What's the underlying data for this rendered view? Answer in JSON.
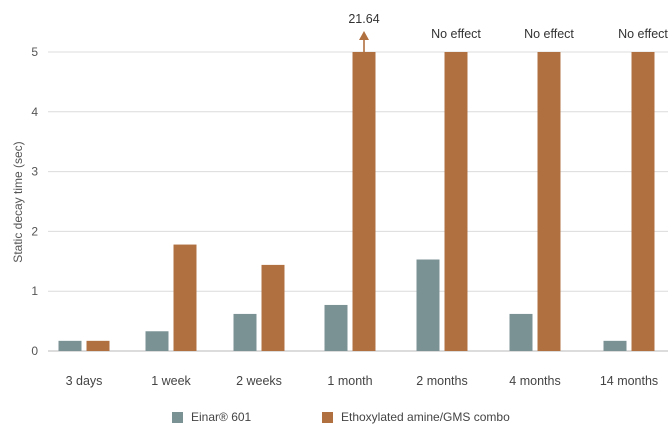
{
  "chart_data": {
    "type": "bar",
    "title": "",
    "xlabel": "",
    "ylabel": "Static decay time (sec)",
    "ylim": [
      0,
      5
    ],
    "yticks": [
      0,
      1,
      2,
      3,
      4,
      5
    ],
    "grid": true,
    "legend_position": "bottom",
    "categories": [
      "3 days",
      "1 week",
      "2 weeks",
      "1 month",
      "2 months",
      "4 months",
      "14 months"
    ],
    "series": [
      {
        "name": "Einar® 601",
        "color": "#7a9294",
        "values": [
          0.17,
          0.33,
          0.62,
          0.77,
          1.53,
          0.62,
          0.17
        ]
      },
      {
        "name": "Ethoxylated amine/GMS combo",
        "color": "#b07040",
        "values": [
          0.17,
          1.78,
          1.44,
          5,
          5,
          5,
          5
        ]
      }
    ],
    "annotations": [
      {
        "category": "1 month",
        "series": "Ethoxylated amine/GMS combo",
        "text": "21.64",
        "arrow": true
      },
      {
        "category": "2 months",
        "series": "Ethoxylated amine/GMS combo",
        "text": "No effect"
      },
      {
        "category": "4 months",
        "series": "Ethoxylated amine/GMS combo",
        "text": "No effect"
      },
      {
        "category": "14 months",
        "series": "Ethoxylated amine/GMS combo",
        "text": "No effect"
      }
    ],
    "legend": [
      {
        "label": "Einar® 601",
        "color": "#7a9294"
      },
      {
        "label": "Ethoxylated amine/GMS combo",
        "color": "#b07040"
      }
    ]
  }
}
